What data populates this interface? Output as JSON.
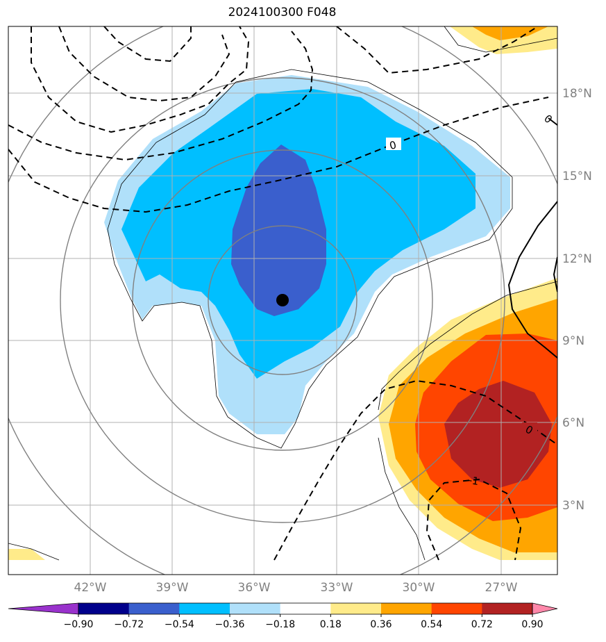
{
  "title": "2024100300 F048",
  "map": {
    "lat_labels": [
      "18°N",
      "15°N",
      "12°N",
      "9°N",
      "6°N",
      "3°N"
    ],
    "lon_labels": [
      "42°W",
      "39°W",
      "36°W",
      "33°W",
      "30°W",
      "27°W"
    ],
    "contour_labels": [
      "0",
      "0",
      "-1",
      "0"
    ],
    "storm_center": {
      "lon": "35°W",
      "lat": "10.3°N"
    }
  },
  "colorbar": {
    "ticks": [
      "−0.90",
      "−0.72",
      "−0.54",
      "−0.36",
      "−0.18",
      "0.18",
      "0.36",
      "0.54",
      "0.72",
      "0.90"
    ],
    "colors": [
      "#9932cc",
      "#00008b",
      "#3a5fcd",
      "#00bfff",
      "#b0e0fa",
      "#ffffff",
      "#ffeb8a",
      "#ffa500",
      "#ff4500",
      "#b22222",
      "#ff88aa"
    ]
  }
}
